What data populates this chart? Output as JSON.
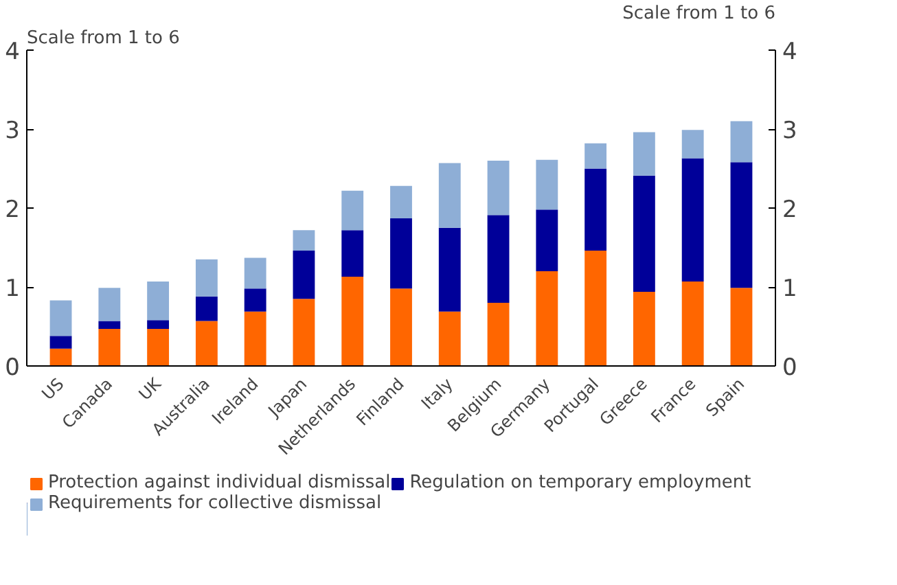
{
  "chart_data": {
    "type": "bar",
    "stacked": true,
    "ylabel": "Scale from 1 to 6",
    "y2label": "Scale from 1 to 6",
    "categories": [
      "US",
      "Canada",
      "UK",
      "Australia",
      "Ireland",
      "Japan",
      "Netherlands",
      "Finland",
      "Italy",
      "Belgium",
      "Germany",
      "Portugal",
      "Greece",
      "France",
      "Spain"
    ],
    "series": [
      {
        "name": "Protection against individual dismissal",
        "color": "#ff6600",
        "values": [
          0.22,
          0.47,
          0.47,
          0.57,
          0.69,
          0.85,
          1.13,
          0.98,
          0.69,
          0.8,
          1.2,
          1.46,
          0.94,
          1.07,
          0.99
        ]
      },
      {
        "name": "Regulation on temporary employment",
        "color": "#000099",
        "values": [
          0.16,
          0.1,
          0.11,
          0.31,
          0.29,
          0.61,
          0.59,
          0.89,
          1.06,
          1.11,
          0.78,
          1.04,
          1.47,
          1.56,
          1.59
        ]
      },
      {
        "name": "Requirements for collective dismissal",
        "color": "#8eaed6",
        "values": [
          0.45,
          0.42,
          0.49,
          0.47,
          0.39,
          0.26,
          0.5,
          0.41,
          0.82,
          0.69,
          0.63,
          0.32,
          0.55,
          0.36,
          0.52
        ]
      }
    ],
    "ylim": [
      0,
      4
    ],
    "yticks": [
      0,
      1,
      2,
      3,
      4
    ],
    "y2lim": [
      0,
      4
    ],
    "y2ticks": [
      0,
      1,
      2,
      3,
      4
    ],
    "grid": false,
    "legend": "bottom"
  }
}
